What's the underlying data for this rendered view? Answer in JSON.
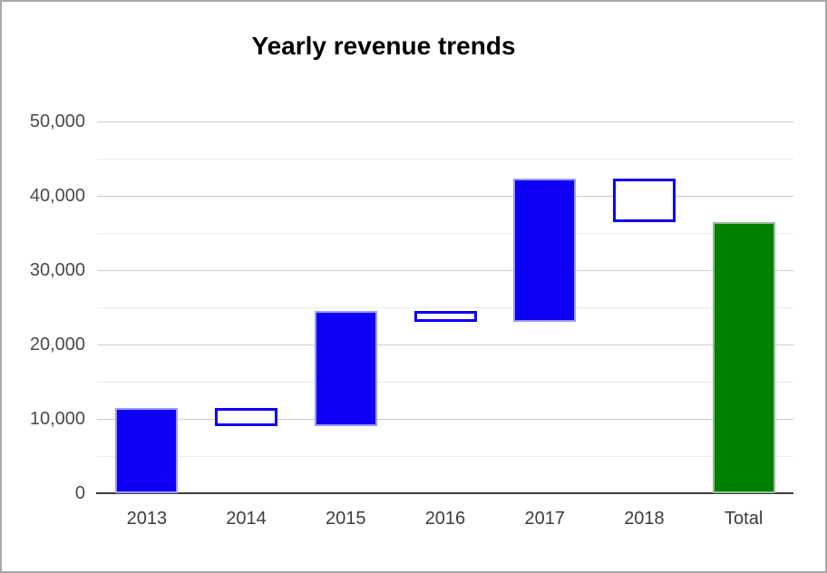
{
  "window": {
    "background": "#ffffff",
    "border_color": "#a9a9a9"
  },
  "chart_data": {
    "type": "waterfall",
    "title": "Yearly revenue trends",
    "categories": [
      "2013",
      "2014",
      "2015",
      "2016",
      "2017",
      "2018",
      "Total"
    ],
    "series": [
      {
        "label": "2013",
        "start": 0,
        "end": 11500,
        "change": 11500,
        "kind": "increase",
        "render": "solid",
        "color": "#0d00f5"
      },
      {
        "label": "2014",
        "start": 11500,
        "end": 9000,
        "change": -2500,
        "kind": "decrease",
        "render": "hollow",
        "color": "#0d00f5"
      },
      {
        "label": "2015",
        "start": 9000,
        "end": 24500,
        "change": 15500,
        "kind": "increase",
        "render": "solid",
        "color": "#0d00f5"
      },
      {
        "label": "2016",
        "start": 24500,
        "end": 23000,
        "change": -1500,
        "kind": "decrease",
        "render": "hollow",
        "color": "#0d00f5"
      },
      {
        "label": "2017",
        "start": 23000,
        "end": 42300,
        "change": 19300,
        "kind": "increase",
        "render": "solid",
        "color": "#0d00f5"
      },
      {
        "label": "2018",
        "start": 42300,
        "end": 36500,
        "change": -5800,
        "kind": "decrease",
        "render": "hollow",
        "color": "#0d00f5"
      },
      {
        "label": "Total",
        "start": 0,
        "end": 36500,
        "change": 36500,
        "kind": "total",
        "render": "solid",
        "color": "#008000"
      }
    ],
    "y_axis": {
      "min": 0,
      "max": 50000,
      "major_step": 10000,
      "minor_step": 5000,
      "tick_labels": [
        "0",
        "10,000",
        "20,000",
        "30,000",
        "40,000",
        "50,000"
      ],
      "tick_values": [
        0,
        10000,
        20000,
        30000,
        40000,
        50000
      ]
    },
    "x_axis_labels": [
      "2013",
      "2014",
      "2015",
      "2016",
      "2017",
      "2018",
      "Total"
    ],
    "legend": "none",
    "grid": {
      "show": true,
      "major_color": "#cccccc",
      "minor_color": "#ebebeb",
      "baseline_color": "#3d3d3d"
    },
    "colors": {
      "increase_fill": "#0d00f5",
      "decrease_outline": "#0d00f5",
      "total_fill": "#008000",
      "solid_blue_edge": "#9a9afc",
      "solid_green_edge": "#93bd93",
      "hollow_fill": "#ffffff"
    }
  }
}
